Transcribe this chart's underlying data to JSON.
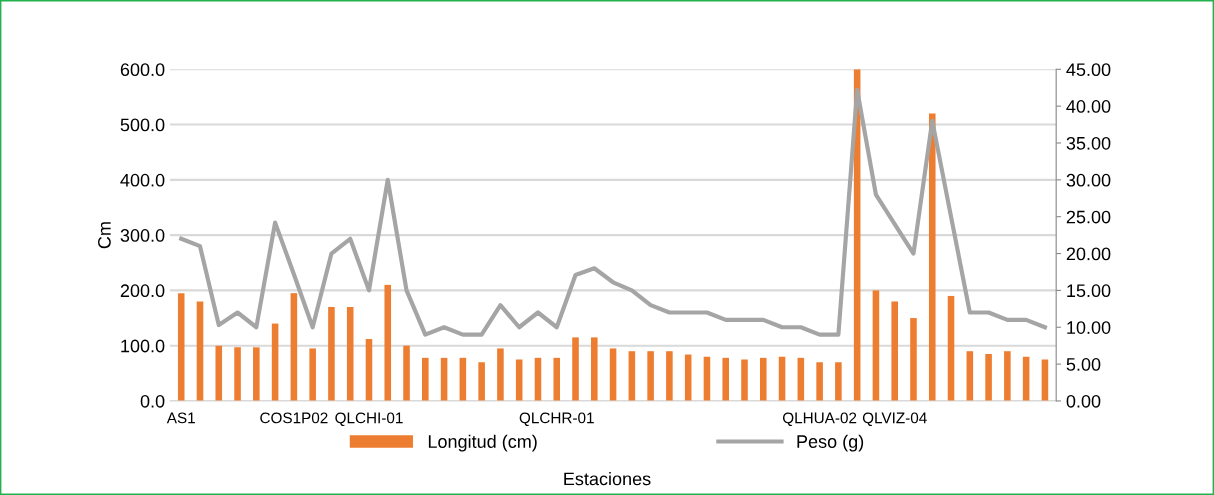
{
  "chart_data": {
    "type": "bar",
    "xlabel": "Estaciones",
    "ylabel": "Cm",
    "categories": [
      "AS1",
      null,
      null,
      null,
      null,
      null,
      "COS1P02",
      null,
      null,
      null,
      "QLCHI-01",
      null,
      null,
      null,
      null,
      null,
      null,
      null,
      null,
      null,
      "QLCHR-01",
      null,
      null,
      null,
      null,
      null,
      null,
      null,
      null,
      null,
      null,
      null,
      null,
      null,
      "QLHUA-02",
      null,
      null,
      null,
      "QLVIZ-04",
      null,
      null,
      null,
      null,
      null,
      null,
      null,
      null
    ],
    "series": [
      {
        "name": "Longitud (cm)",
        "color": "#ed7d31",
        "values": [
          195,
          180,
          100,
          97,
          97,
          140,
          195,
          95,
          170,
          170,
          112,
          210,
          100,
          78,
          78,
          78,
          70,
          95,
          75,
          78,
          78,
          115,
          115,
          95,
          90,
          90,
          90,
          84,
          80,
          78,
          75,
          78,
          80,
          78,
          70,
          70,
          600,
          200,
          180,
          150,
          520,
          190,
          90,
          85,
          90,
          80,
          75
        ]
      },
      {
        "name": "Peso (g)",
        "type": "line",
        "axis": "y2",
        "color": "#a5a5a5",
        "values": [
          22,
          21,
          10.3,
          12,
          10,
          24.2,
          17.2,
          10,
          20,
          22,
          15,
          30,
          15,
          9,
          10,
          9,
          9,
          13,
          10,
          12,
          10,
          17.1,
          18,
          16.1,
          15,
          13,
          12,
          12,
          12,
          11,
          11,
          11,
          10,
          10,
          9,
          9,
          42.2,
          28,
          24,
          20,
          38,
          25,
          12,
          12,
          11,
          11,
          10
        ]
      }
    ],
    "ylim": [
      0,
      600
    ],
    "yticks": [
      {
        "value": 0,
        "label": "0.0"
      },
      {
        "value": 100,
        "label": "100.0"
      },
      {
        "value": 200,
        "label": "200.0"
      },
      {
        "value": 300,
        "label": "300.0"
      },
      {
        "value": 400,
        "label": "400.0"
      },
      {
        "value": 500,
        "label": "500.0"
      },
      {
        "value": 600,
        "label": "600.0"
      }
    ],
    "y2lim": [
      0,
      45
    ],
    "y2ticks": [
      {
        "value": 0,
        "label": "0.00"
      },
      {
        "value": 5,
        "label": "5.00"
      },
      {
        "value": 10,
        "label": "10.00"
      },
      {
        "value": 15,
        "label": "15.00"
      },
      {
        "value": 20,
        "label": "20.00"
      },
      {
        "value": 25,
        "label": "25.00"
      },
      {
        "value": 30,
        "label": "30.00"
      },
      {
        "value": 35,
        "label": "35.00"
      },
      {
        "value": 40,
        "label": "40.00"
      },
      {
        "value": 45,
        "label": "45.00"
      }
    ],
    "grid": "y",
    "legend": "bottom",
    "marker": "none",
    "line_style": "solid"
  }
}
